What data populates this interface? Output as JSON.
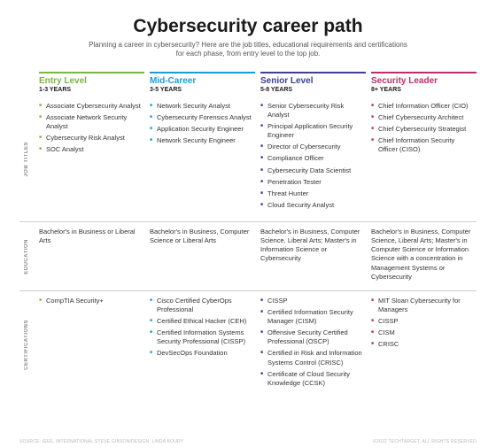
{
  "title": "Cybersecurity career path",
  "subtitle": "Planning a career in cybersecurity? Here are the job titles, educational requirements and certifications for each phase, from entry level to the top job.",
  "row_labels": {
    "titles": "JOB TITLES",
    "education": "EDUCATION",
    "certs": "CERTIFICATIONS"
  },
  "colors": {
    "entry": "#7ab642",
    "mid": "#1e9bd6",
    "senior": "#3e3f93",
    "leader": "#b82f6c",
    "divider": "#cfcfcf",
    "text": "#333333",
    "bullet_size": 5
  },
  "stages": [
    {
      "key": "entry",
      "name": "Entry Level",
      "years": "1-3 YEARS",
      "color": "#7ab642",
      "titles": [
        "Associate Cybersecurity Analyst",
        "Associate Network Security Analyst",
        "Cybersecurity Risk Analyst",
        "SOC Analyst"
      ],
      "education": "Bachelor's in Business or Liberal Arts",
      "certs": [
        "CompTIA Security+"
      ]
    },
    {
      "key": "mid",
      "name": "Mid-Career",
      "years": "3-5 YEARS",
      "color": "#1e9bd6",
      "titles": [
        "Network Security Analyst",
        "Cybersecurity Forensics Analyst",
        "Application Security Engineer",
        "Network Security Engineer"
      ],
      "education": "Bachelor's in Business, Computer Science or Liberal Arts",
      "certs": [
        "Cisco Certified CyberOps Professional",
        "Certified Ethical Hacker (CEH)",
        "Certified Information Systems Security Professional (CISSP)",
        "DevSecOps Foundation"
      ]
    },
    {
      "key": "senior",
      "name": "Senior Level",
      "years": "5-8 YEARS",
      "color": "#3e3f93",
      "titles": [
        "Senior Cybersecurity Risk Analyst",
        "Principal Application Security Engineer",
        "Director of Cybersecurity",
        "Compliance Officer",
        "Cybersecurity Data Scientist",
        "Penetration Tester",
        "Threat Hunter",
        "Cloud Security Analyst"
      ],
      "education": "Bachelor's in Business, Computer Science, Liberal Arts; Master's in Information Science or Cybersecurity",
      "certs": [
        "CISSP",
        "Certified Information Security Manager (CISM)",
        "Offensive Security Certified Professional (OSCP)",
        "Certified in Risk and Information Systems Control (CRISC)",
        "Certificate of Cloud Security Knowledge (CCSK)"
      ]
    },
    {
      "key": "leader",
      "name": "Security Leader",
      "years": "8+ YEARS",
      "color": "#b82f6c",
      "titles": [
        "Chief Information Officer (CIO)",
        "Chief Cybersecurity Architect",
        "Chief Cybersecurity Strategist",
        "Chief Information Security Officer (CISO)"
      ],
      "education": "Bachelor's in Business, Computer Science, Liberal Arts; Master's in Computer Science or Information Science with a concentration in Management Systems or Cybersecurity",
      "certs": [
        "MIT Sloan Cybersecurity for Managers",
        "CISSP",
        "CISM",
        "CRISC"
      ]
    }
  ],
  "footer": {
    "left": "SOURCE: IEEE, INTERNATIONAL STEVE GIBSON/DESIGN: LINDA KOURY",
    "right": "©2022 TECHTARGET, ALL RIGHTS RESERVED"
  }
}
